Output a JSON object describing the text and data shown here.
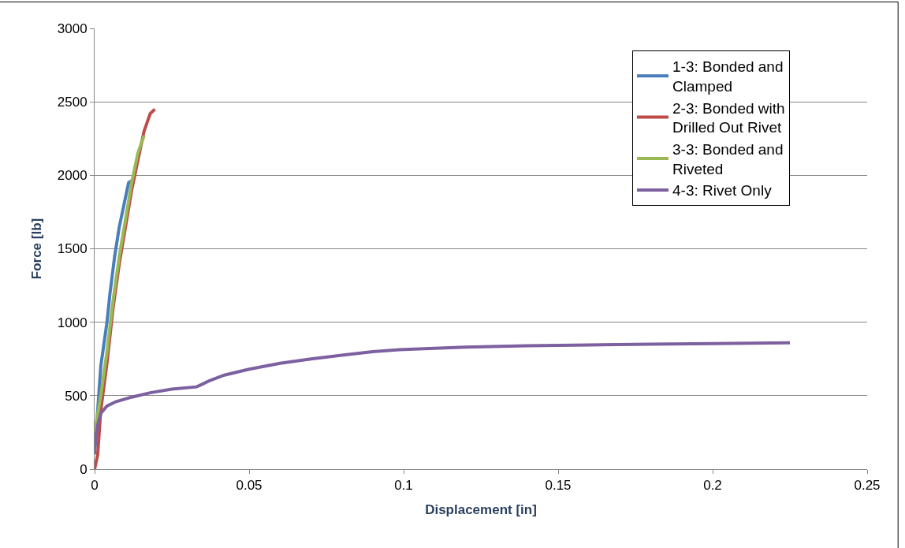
{
  "chart_data": {
    "type": "line",
    "xlabel": "Displacement [in]",
    "ylabel": "Force [lb]",
    "xlim": [
      0,
      0.25
    ],
    "xticks": [
      0,
      0.05,
      0.1,
      0.15,
      0.2,
      0.25
    ],
    "ylim": [
      0,
      3000
    ],
    "yticks": [
      0,
      500,
      1000,
      1500,
      2000,
      2500,
      3000
    ],
    "grid": "y",
    "legend": "top right",
    "marker": "none",
    "line_style": "solid",
    "series": [
      {
        "name": "1-3: Bonded and Clamped",
        "color": "#4a7ebb",
        "x": [
          0,
          0.001,
          0.002,
          0.004,
          0.005,
          0.0065,
          0.008,
          0.0095,
          0.011,
          0.0125
        ],
        "values": [
          100,
          400,
          700,
          1000,
          1200,
          1450,
          1650,
          1800,
          1950,
          1970
        ]
      },
      {
        "name": "2-3: Bonded with Drilled Out Rivet",
        "color": "#be4b48",
        "x": [
          0,
          0.001,
          0.002,
          0.004,
          0.006,
          0.008,
          0.01,
          0.012,
          0.014,
          0.016,
          0.018,
          0.0195
        ],
        "values": [
          0,
          100,
          400,
          720,
          1100,
          1400,
          1650,
          1900,
          2100,
          2300,
          2420,
          2450
        ]
      },
      {
        "name": "3-3: Bonded and Riveted",
        "color": "#98b954",
        "x": [
          0,
          0.002,
          0.004,
          0.006,
          0.008,
          0.01,
          0.012,
          0.014,
          0.016
        ],
        "values": [
          250,
          500,
          800,
          1150,
          1450,
          1700,
          1950,
          2150,
          2270
        ]
      },
      {
        "name": "4-3: Rivet Only",
        "color": "#7d60a0",
        "x": [
          0,
          0.001,
          0.002,
          0.004,
          0.007,
          0.012,
          0.018,
          0.025,
          0.033,
          0.037,
          0.042,
          0.05,
          0.06,
          0.07,
          0.08,
          0.09,
          0.1,
          0.12,
          0.14,
          0.16,
          0.18,
          0.2,
          0.225
        ],
        "values": [
          150,
          300,
          380,
          430,
          460,
          490,
          520,
          545,
          560,
          600,
          640,
          680,
          720,
          750,
          775,
          800,
          815,
          830,
          840,
          845,
          850,
          855,
          860
        ]
      }
    ]
  }
}
